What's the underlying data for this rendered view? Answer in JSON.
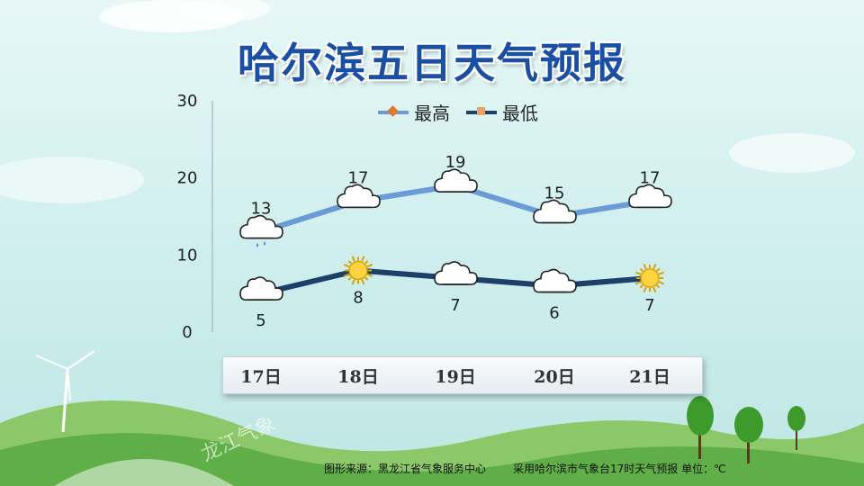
{
  "title": "哈尔滨五日天气预报",
  "legend": {
    "high": "最高",
    "low": "最低"
  },
  "colors": {
    "high_line": "#6b9bd6",
    "low_line": "#1f3f6b",
    "high_marker": "#e07a2e",
    "low_marker": "#e8a26b",
    "title": "#1a4fa3"
  },
  "chart_data": {
    "type": "line",
    "categories": [
      "17日",
      "18日",
      "19日",
      "20日",
      "21日"
    ],
    "series": [
      {
        "name": "最高",
        "values": [
          13,
          17,
          19,
          15,
          17
        ],
        "icons": [
          "rain-cloud",
          "cloud",
          "cloud",
          "cloud",
          "cloud"
        ]
      },
      {
        "name": "最低",
        "values": [
          5,
          8,
          7,
          6,
          7
        ],
        "icons": [
          "cloud",
          "sun",
          "cloud",
          "cloud",
          "sun"
        ]
      }
    ],
    "yticks": [
      0,
      10,
      20,
      30
    ],
    "ylim": [
      0,
      30
    ],
    "legend_position": "top",
    "grid": false
  },
  "footer": {
    "source": "图形来源：黑龙江省气象服务中心",
    "note": "采用哈尔滨市气象台17时天气预报 单位：℃"
  },
  "watermark": "龙江气象"
}
